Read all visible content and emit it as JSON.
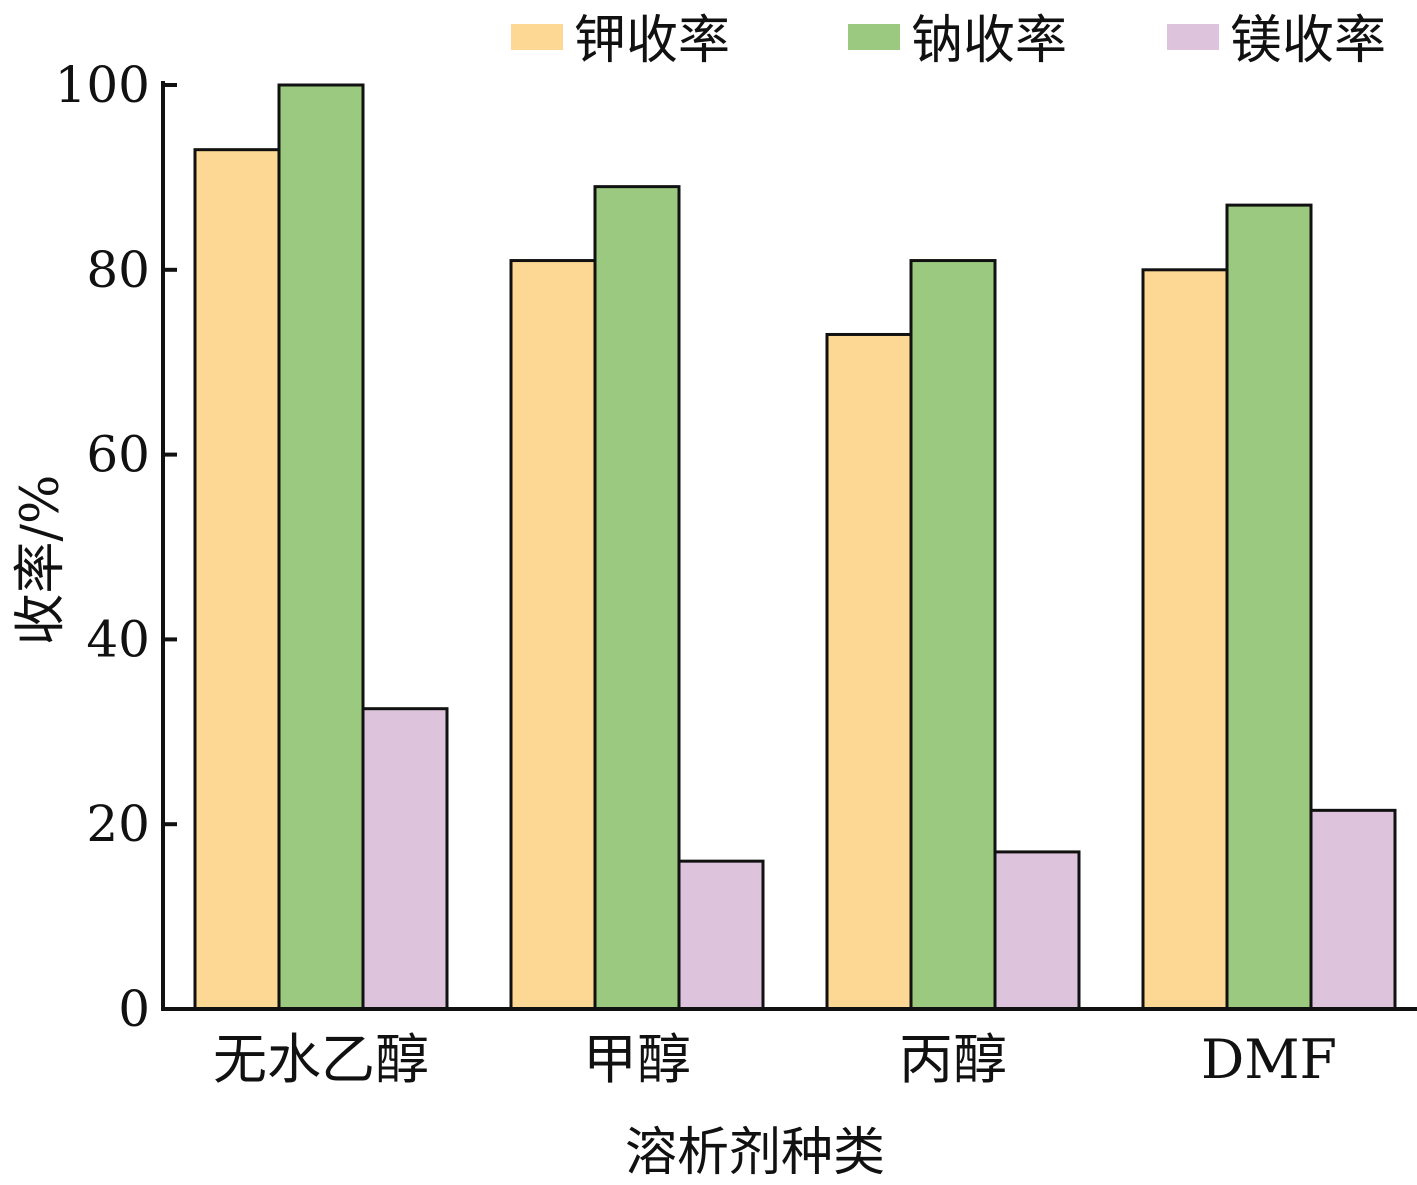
{
  "chart_data": {
    "type": "bar",
    "title": "",
    "xlabel": "溶析剂种类",
    "ylabel": "收率/%",
    "ylim": [
      0,
      100
    ],
    "yticks": [
      "0",
      "20",
      "40",
      "60",
      "80",
      "100"
    ],
    "categories": [
      "无水乙醇",
      "甲醇",
      "丙醇",
      "DMF"
    ],
    "legend_position": "top-right",
    "grid": false,
    "series": [
      {
        "name": "钾收率",
        "color": "#fdd794",
        "values": [
          93,
          81,
          73,
          80
        ]
      },
      {
        "name": "钠收率",
        "color": "#9bc97f",
        "values": [
          100,
          89,
          81,
          87
        ]
      },
      {
        "name": "镁收率",
        "color": "#dec3dc",
        "values": [
          32.5,
          16,
          17,
          21.5
        ]
      }
    ]
  }
}
